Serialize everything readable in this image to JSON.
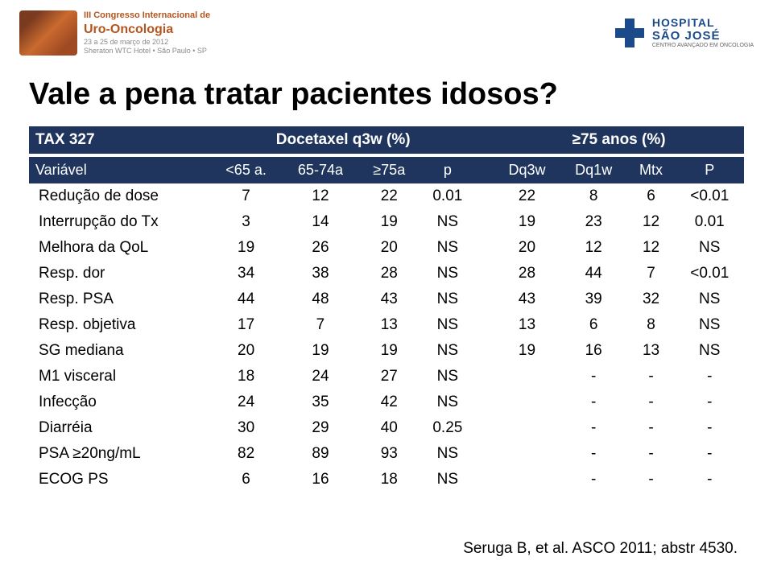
{
  "header": {
    "left": {
      "line1": "III Congresso Internacional de",
      "line2": "Uro-Oncologia",
      "line3": "23 a 25 de março de 2012",
      "line4": "Sheraton WTC Hotel • São Paulo • SP"
    },
    "right": {
      "top": "HOSPITAL",
      "mid": "SÃO JOSÉ",
      "sub": "CENTRO AVANÇADO EM ONCOLOGIA"
    }
  },
  "title": "Vale a pena tratar pacientes idosos?",
  "table": {
    "study_label": "TAX 327",
    "group1_label": "Docetaxel q3w (%)",
    "group2_label": "≥75 anos (%)",
    "subheaders": {
      "var": "Variável",
      "c1": "<65 a.",
      "c2": "65-74a",
      "c3": "≥75a",
      "c4": "p",
      "g2c1": "Dq3w",
      "g2c2": "Dq1w",
      "g2c3": "Mtx",
      "g2c4": "P"
    },
    "rows": [
      {
        "var": "Redução de dose",
        "a": [
          "7",
          "12",
          "22",
          "0.01"
        ],
        "b": [
          "22",
          "8",
          "6",
          "<0.01"
        ]
      },
      {
        "var": "Interrupção do Tx",
        "a": [
          "3",
          "14",
          "19",
          "NS"
        ],
        "b": [
          "19",
          "23",
          "12",
          "0.01"
        ]
      },
      {
        "var": "Melhora da QoL",
        "a": [
          "19",
          "26",
          "20",
          "NS"
        ],
        "b": [
          "20",
          "12",
          "12",
          "NS"
        ]
      },
      {
        "var": "Resp. dor",
        "a": [
          "34",
          "38",
          "28",
          "NS"
        ],
        "b": [
          "28",
          "44",
          "7",
          "<0.01"
        ]
      },
      {
        "var": "Resp. PSA",
        "a": [
          "44",
          "48",
          "43",
          "NS"
        ],
        "b": [
          "43",
          "39",
          "32",
          "NS"
        ]
      },
      {
        "var": "Resp. objetiva",
        "a": [
          "17",
          "7",
          "13",
          "NS"
        ],
        "b": [
          "13",
          "6",
          "8",
          "NS"
        ]
      },
      {
        "var": "SG mediana",
        "a": [
          "20",
          "19",
          "19",
          "NS"
        ],
        "b": [
          "19",
          "16",
          "13",
          "NS"
        ]
      },
      {
        "var": "M1 visceral",
        "a": [
          "18",
          "24",
          "27",
          "NS"
        ],
        "b": [
          "",
          "-",
          "-",
          "-"
        ]
      },
      {
        "var": "Infecção",
        "a": [
          "24",
          "35",
          "42",
          "NS"
        ],
        "b": [
          "",
          "-",
          "-",
          "-"
        ]
      },
      {
        "var": "Diarréia",
        "a": [
          "30",
          "29",
          "40",
          "0.25"
        ],
        "b": [
          "",
          "-",
          "-",
          "-"
        ]
      },
      {
        "var": "PSA ≥20ng/mL",
        "a": [
          "82",
          "89",
          "93",
          "NS"
        ],
        "b": [
          "",
          "-",
          "-",
          "-"
        ]
      },
      {
        "var": "ECOG PS",
        "a": [
          "6",
          "16",
          "18",
          "NS"
        ],
        "b": [
          "",
          "-",
          "-",
          "-"
        ]
      }
    ]
  },
  "footnote": "Seruga B, et al. ASCO 2011; abstr 4530.",
  "colors": {
    "header_bg": "#1f355e",
    "header_fg": "#ffffff",
    "text": "#000000",
    "hospital_blue": "#1a4a8a",
    "congress_orange": "#b3551e"
  }
}
